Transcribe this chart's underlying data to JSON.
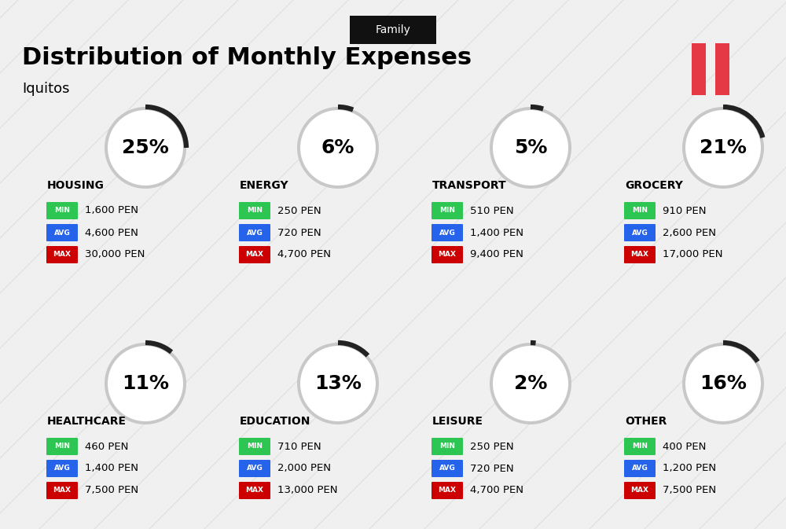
{
  "title": "Distribution of Monthly Expenses",
  "subtitle": "Iquitos",
  "tag": "Family",
  "bg_color": "#f0f0f0",
  "categories": [
    {
      "name": "HOUSING",
      "pct": 25,
      "min": "1,600 PEN",
      "avg": "4,600 PEN",
      "max": "30,000 PEN",
      "row": 0,
      "col": 0
    },
    {
      "name": "ENERGY",
      "pct": 6,
      "min": "250 PEN",
      "avg": "720 PEN",
      "max": "4,700 PEN",
      "row": 0,
      "col": 1
    },
    {
      "name": "TRANSPORT",
      "pct": 5,
      "min": "510 PEN",
      "avg": "1,400 PEN",
      "max": "9,400 PEN",
      "row": 0,
      "col": 2
    },
    {
      "name": "GROCERY",
      "pct": 21,
      "min": "910 PEN",
      "avg": "2,600 PEN",
      "max": "17,000 PEN",
      "row": 0,
      "col": 3
    },
    {
      "name": "HEALTHCARE",
      "pct": 11,
      "min": "460 PEN",
      "avg": "1,400 PEN",
      "max": "7,500 PEN",
      "row": 1,
      "col": 0
    },
    {
      "name": "EDUCATION",
      "pct": 13,
      "min": "710 PEN",
      "avg": "2,000 PEN",
      "max": "13,000 PEN",
      "row": 1,
      "col": 1
    },
    {
      "name": "LEISURE",
      "pct": 2,
      "min": "250 PEN",
      "avg": "720 PEN",
      "max": "4,700 PEN",
      "row": 1,
      "col": 2
    },
    {
      "name": "OTHER",
      "pct": 16,
      "min": "400 PEN",
      "avg": "1,200 PEN",
      "max": "7,500 PEN",
      "row": 1,
      "col": 3
    }
  ],
  "min_color": "#2dc653",
  "avg_color": "#2563eb",
  "max_color": "#cc0000",
  "label_text_color": "#ffffff",
  "badge_label_fontsize": 6.5,
  "value_fontsize": 9.5,
  "cat_name_fontsize": 10,
  "pct_fontsize": 18,
  "circle_color": "#c8c8c8",
  "circle_fill": "#ffffff",
  "arc_color": "#222222",
  "flag_colors": [
    "#e63946",
    "#e63946"
  ],
  "diag_line_color": "#d0d0d0"
}
